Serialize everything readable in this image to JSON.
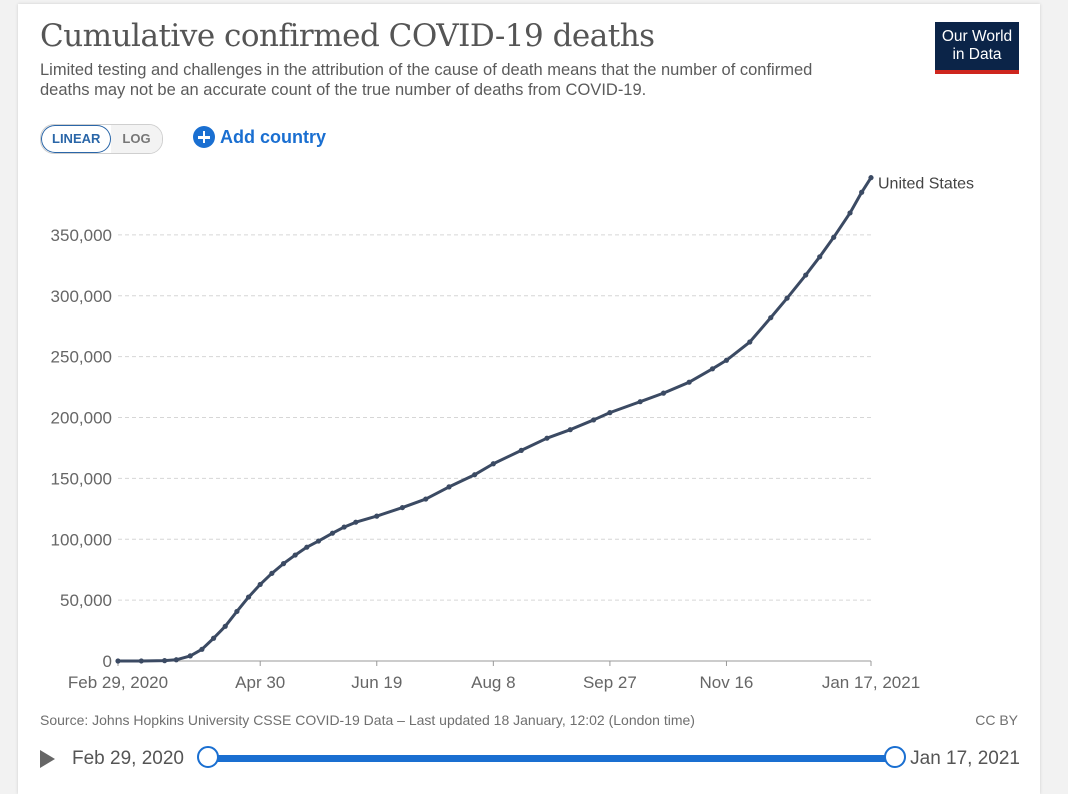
{
  "title": "Cumulative confirmed COVID-19 deaths",
  "subtitle": "Limited testing and challenges in the attribution of the cause of death means that the number of confirmed deaths may not be an accurate count of the true number of deaths from COVID-19.",
  "logo": {
    "line1": "Our World",
    "line2": "in Data"
  },
  "scale_toggle": {
    "linear": "LINEAR",
    "log": "LOG",
    "active": "LINEAR"
  },
  "add_country": {
    "label": "Add country",
    "icon": "plus-circle-icon"
  },
  "source": "Source: Johns Hopkins University CSSE COVID-19 Data – Last updated 18 January, 12:02 (London time)",
  "license": "CC BY",
  "timeline": {
    "start": "Feb 29, 2020",
    "end": "Jan 17, 2021",
    "play_icon": "play-icon"
  },
  "colors": {
    "series": "#3b4a63",
    "accent": "#1a6fd1",
    "logo_bg": "#0b2448",
    "logo_bar": "#ce261e"
  },
  "chart_data": {
    "type": "line",
    "title": "Cumulative confirmed COVID-19 deaths",
    "xlabel": "",
    "ylabel": "",
    "ylim": [
      0,
      400000
    ],
    "yticks": [
      0,
      50000,
      100000,
      150000,
      200000,
      250000,
      300000,
      350000
    ],
    "ytick_labels": [
      "0",
      "50,000",
      "100,000",
      "150,000",
      "200,000",
      "250,000",
      "300,000",
      "350,000"
    ],
    "xlim": [
      "2020-02-29",
      "2021-01-17"
    ],
    "xticks": [
      "2020-02-29",
      "2020-04-30",
      "2020-06-19",
      "2020-08-08",
      "2020-09-27",
      "2020-11-16",
      "2021-01-17"
    ],
    "xtick_labels": [
      "Feb 29, 2020",
      "Apr 30",
      "Jun 19",
      "Aug 8",
      "Sep 27",
      "Nov 16",
      "Jan 17, 2021"
    ],
    "grid": "horizontal dashed",
    "series": [
      {
        "name": "United States",
        "x": [
          "2020-02-29",
          "2020-03-10",
          "2020-03-20",
          "2020-03-25",
          "2020-03-31",
          "2020-04-05",
          "2020-04-10",
          "2020-04-15",
          "2020-04-20",
          "2020-04-25",
          "2020-04-30",
          "2020-05-05",
          "2020-05-10",
          "2020-05-15",
          "2020-05-20",
          "2020-05-25",
          "2020-05-31",
          "2020-06-05",
          "2020-06-10",
          "2020-06-19",
          "2020-06-30",
          "2020-07-10",
          "2020-07-20",
          "2020-07-31",
          "2020-08-08",
          "2020-08-20",
          "2020-08-31",
          "2020-09-10",
          "2020-09-20",
          "2020-09-27",
          "2020-10-10",
          "2020-10-20",
          "2020-10-31",
          "2020-11-10",
          "2020-11-16",
          "2020-11-26",
          "2020-12-05",
          "2020-12-12",
          "2020-12-20",
          "2020-12-26",
          "2021-01-01",
          "2021-01-08",
          "2021-01-13",
          "2021-01-17"
        ],
        "y": [
          0,
          30,
          300,
          1000,
          4200,
          9600,
          18700,
          28500,
          40700,
          52500,
          62900,
          72000,
          80000,
          87000,
          93500,
          98500,
          105000,
          110000,
          114000,
          119000,
          126000,
          133000,
          143000,
          153000,
          162000,
          173000,
          183000,
          190000,
          198000,
          204000,
          213000,
          220000,
          229000,
          240000,
          247000,
          262000,
          282000,
          298000,
          317000,
          332000,
          348000,
          368000,
          385000,
          397000
        ]
      }
    ]
  }
}
